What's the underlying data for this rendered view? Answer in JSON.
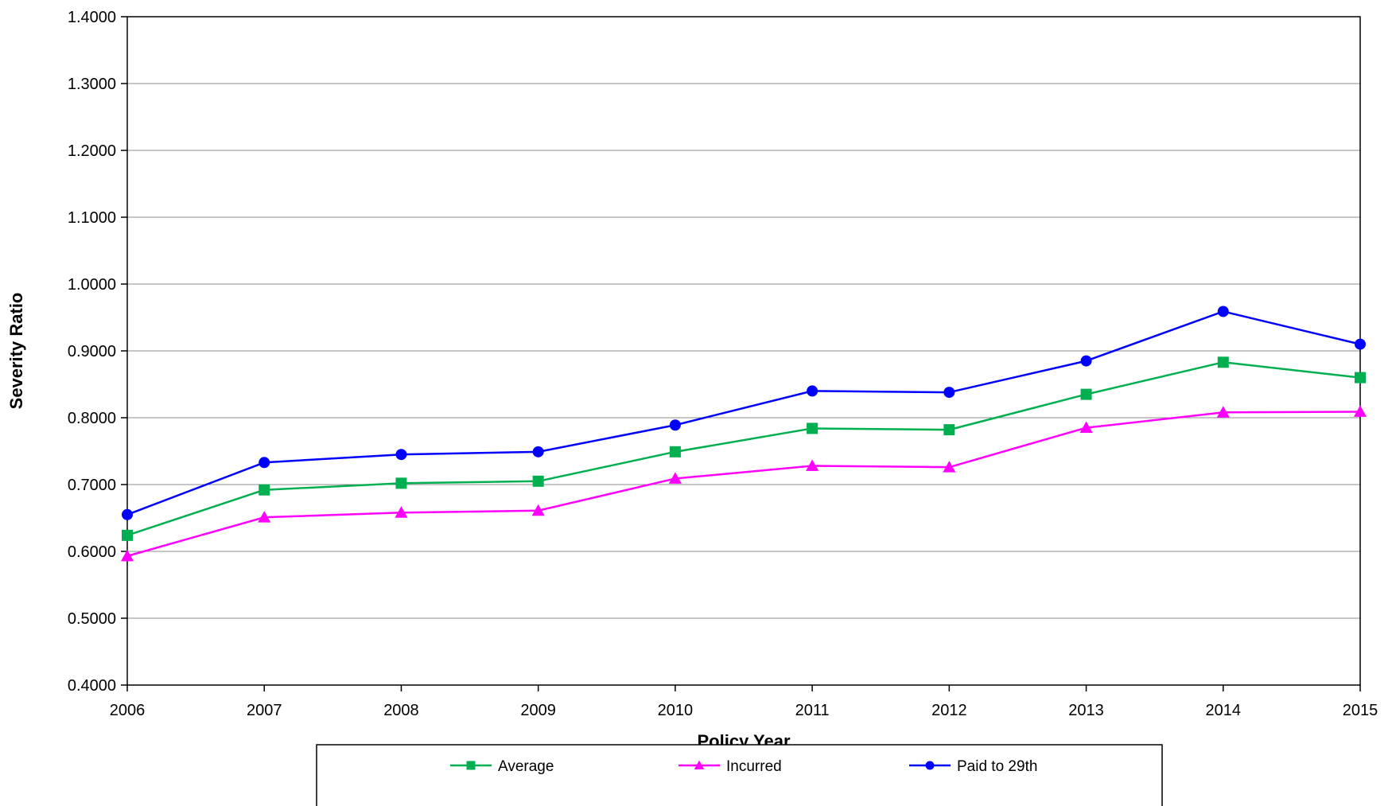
{
  "chart_data": {
    "type": "line",
    "title": "",
    "xlabel": "Policy Year",
    "ylabel": "Severity Ratio",
    "x": [
      "2006",
      "2007",
      "2008",
      "2009",
      "2010",
      "2011",
      "2012",
      "2013",
      "2014",
      "2015"
    ],
    "ylim": [
      0.4,
      1.4
    ],
    "yticks": [
      "0.4000",
      "0.5000",
      "0.6000",
      "0.7000",
      "0.8000",
      "0.9000",
      "1.0000",
      "1.1000",
      "1.2000",
      "1.3000",
      "1.4000"
    ],
    "grid": true,
    "legend_position": "bottom",
    "series": [
      {
        "name": "Average",
        "color": "#00b050",
        "marker": "square",
        "values": [
          0.624,
          0.692,
          0.702,
          0.705,
          0.749,
          0.784,
          0.782,
          0.835,
          0.883,
          0.86
        ]
      },
      {
        "name": "Incurred",
        "color": "#ff00ff",
        "marker": "triangle",
        "values": [
          0.593,
          0.651,
          0.658,
          0.661,
          0.709,
          0.728,
          0.726,
          0.785,
          0.808,
          0.809
        ]
      },
      {
        "name": "Paid to 29th",
        "color": "#0000ff",
        "marker": "circle",
        "values": [
          0.655,
          0.733,
          0.745,
          0.749,
          0.789,
          0.84,
          0.838,
          0.885,
          0.959,
          0.91
        ]
      }
    ]
  }
}
